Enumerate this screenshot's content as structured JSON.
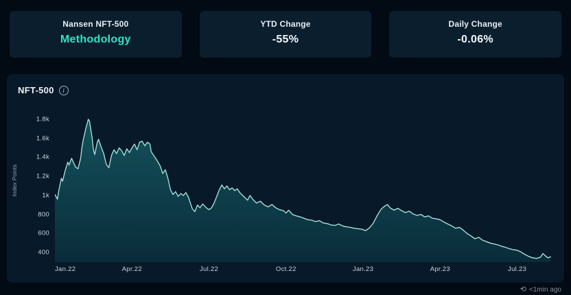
{
  "header": {
    "cards": [
      {
        "label": "Nansen NFT-500",
        "value": "Methodology"
      },
      {
        "label": "YTD Change",
        "value": "-55%"
      },
      {
        "label": "Daily Change",
        "value": "-0.06%"
      }
    ]
  },
  "panel": {
    "title": "NFT-500"
  },
  "icons": {
    "info_glyph": "i",
    "refresh_glyph": "⟲"
  },
  "footer": {
    "updated": "<1min ago"
  },
  "colors": {
    "accent_teal": "#2ce5c4",
    "card_bg": "#0b1e2e",
    "panel_bg": "#081929",
    "page_bg": "#020a13",
    "line": "#a5e3dc",
    "area_top": "#14525c",
    "area_bottom": "#0a2c3a"
  },
  "chart_data": {
    "type": "area",
    "title": "NFT-500",
    "xlabel": "",
    "ylabel": "Index Points",
    "x_unit": "months since Jan 2022",
    "xlim": [
      0,
      19.4
    ],
    "ylim": [
      300,
      1900
    ],
    "grid": false,
    "legend": "none",
    "x_ticks": [
      {
        "value": 0,
        "label": "Jan.22"
      },
      {
        "value": 3,
        "label": "Apr.22"
      },
      {
        "value": 6,
        "label": "Jul.22"
      },
      {
        "value": 9,
        "label": "Oct.22"
      },
      {
        "value": 12,
        "label": "Jan.23"
      },
      {
        "value": 15,
        "label": "Apr.23"
      },
      {
        "value": 18,
        "label": "Jul.23"
      }
    ],
    "y_ticks": [
      {
        "value": 400,
        "label": "400"
      },
      {
        "value": 600,
        "label": "600"
      },
      {
        "value": 800,
        "label": "800"
      },
      {
        "value": 1000,
        "label": "1k"
      },
      {
        "value": 1200,
        "label": "1.2k"
      },
      {
        "value": 1400,
        "label": "1.4k"
      },
      {
        "value": 1600,
        "label": "1.6k"
      },
      {
        "value": 1800,
        "label": "1.8k"
      }
    ],
    "points": [
      [
        0,
        1010
      ],
      [
        0.1,
        960
      ],
      [
        0.15,
        1050
      ],
      [
        0.25,
        1180
      ],
      [
        0.3,
        1150
      ],
      [
        0.4,
        1260
      ],
      [
        0.5,
        1350
      ],
      [
        0.55,
        1320
      ],
      [
        0.65,
        1390
      ],
      [
        0.7,
        1360
      ],
      [
        0.8,
        1300
      ],
      [
        0.9,
        1280
      ],
      [
        1.0,
        1390
      ],
      [
        1.05,
        1500
      ],
      [
        1.1,
        1580
      ],
      [
        1.2,
        1700
      ],
      [
        1.3,
        1800
      ],
      [
        1.35,
        1780
      ],
      [
        1.45,
        1600
      ],
      [
        1.5,
        1480
      ],
      [
        1.55,
        1430
      ],
      [
        1.65,
        1560
      ],
      [
        1.7,
        1590
      ],
      [
        1.8,
        1510
      ],
      [
        1.9,
        1440
      ],
      [
        2.0,
        1330
      ],
      [
        2.1,
        1290
      ],
      [
        2.2,
        1420
      ],
      [
        2.3,
        1480
      ],
      [
        2.4,
        1440
      ],
      [
        2.5,
        1500
      ],
      [
        2.6,
        1470
      ],
      [
        2.7,
        1420
      ],
      [
        2.8,
        1490
      ],
      [
        2.9,
        1450
      ],
      [
        3.0,
        1500
      ],
      [
        3.1,
        1540
      ],
      [
        3.2,
        1480
      ],
      [
        3.3,
        1560
      ],
      [
        3.4,
        1570
      ],
      [
        3.5,
        1520
      ],
      [
        3.6,
        1560
      ],
      [
        3.7,
        1540
      ],
      [
        3.75,
        1460
      ],
      [
        3.85,
        1420
      ],
      [
        3.95,
        1380
      ],
      [
        4.1,
        1310
      ],
      [
        4.2,
        1230
      ],
      [
        4.3,
        1270
      ],
      [
        4.4,
        1180
      ],
      [
        4.5,
        1060
      ],
      [
        4.6,
        1010
      ],
      [
        4.7,
        1040
      ],
      [
        4.8,
        990
      ],
      [
        4.9,
        1020
      ],
      [
        5.0,
        1000
      ],
      [
        5.1,
        1030
      ],
      [
        5.2,
        980
      ],
      [
        5.35,
        860
      ],
      [
        5.45,
        830
      ],
      [
        5.55,
        900
      ],
      [
        5.65,
        870
      ],
      [
        5.75,
        910
      ],
      [
        5.9,
        870
      ],
      [
        6.0,
        850
      ],
      [
        6.1,
        870
      ],
      [
        6.2,
        920
      ],
      [
        6.3,
        990
      ],
      [
        6.4,
        1060
      ],
      [
        6.5,
        1110
      ],
      [
        6.6,
        1070
      ],
      [
        6.7,
        1100
      ],
      [
        6.8,
        1060
      ],
      [
        6.9,
        1080
      ],
      [
        7.0,
        1050
      ],
      [
        7.1,
        1070
      ],
      [
        7.2,
        1030
      ],
      [
        7.35,
        990
      ],
      [
        7.5,
        950
      ],
      [
        7.6,
        1000
      ],
      [
        7.7,
        960
      ],
      [
        7.85,
        920
      ],
      [
        8.0,
        940
      ],
      [
        8.15,
        900
      ],
      [
        8.3,
        880
      ],
      [
        8.45,
        905
      ],
      [
        8.6,
        870
      ],
      [
        8.75,
        850
      ],
      [
        8.9,
        840
      ],
      [
        9.0,
        815
      ],
      [
        9.1,
        845
      ],
      [
        9.25,
        800
      ],
      [
        9.4,
        785
      ],
      [
        9.55,
        775
      ],
      [
        9.7,
        760
      ],
      [
        9.85,
        745
      ],
      [
        10.0,
        740
      ],
      [
        10.15,
        725
      ],
      [
        10.3,
        735
      ],
      [
        10.45,
        710
      ],
      [
        10.6,
        705
      ],
      [
        10.75,
        690
      ],
      [
        10.9,
        685
      ],
      [
        11.05,
        700
      ],
      [
        11.2,
        680
      ],
      [
        11.35,
        670
      ],
      [
        11.5,
        665
      ],
      [
        11.65,
        655
      ],
      [
        11.8,
        650
      ],
      [
        11.95,
        645
      ],
      [
        12.1,
        630
      ],
      [
        12.25,
        660
      ],
      [
        12.4,
        710
      ],
      [
        12.55,
        790
      ],
      [
        12.7,
        855
      ],
      [
        12.85,
        890
      ],
      [
        12.95,
        905
      ],
      [
        13.05,
        870
      ],
      [
        13.2,
        845
      ],
      [
        13.35,
        865
      ],
      [
        13.5,
        840
      ],
      [
        13.65,
        820
      ],
      [
        13.8,
        835
      ],
      [
        13.95,
        805
      ],
      [
        14.1,
        790
      ],
      [
        14.25,
        800
      ],
      [
        14.4,
        775
      ],
      [
        14.55,
        785
      ],
      [
        14.7,
        760
      ],
      [
        14.85,
        755
      ],
      [
        15.0,
        745
      ],
      [
        15.15,
        720
      ],
      [
        15.3,
        700
      ],
      [
        15.45,
        680
      ],
      [
        15.6,
        655
      ],
      [
        15.75,
        665
      ],
      [
        15.9,
        635
      ],
      [
        16.05,
        600
      ],
      [
        16.2,
        575
      ],
      [
        16.35,
        545
      ],
      [
        16.5,
        560
      ],
      [
        16.65,
        530
      ],
      [
        16.8,
        515
      ],
      [
        16.95,
        500
      ],
      [
        17.1,
        490
      ],
      [
        17.25,
        480
      ],
      [
        17.4,
        465
      ],
      [
        17.55,
        455
      ],
      [
        17.7,
        440
      ],
      [
        17.85,
        430
      ],
      [
        18.0,
        425
      ],
      [
        18.15,
        405
      ],
      [
        18.3,
        380
      ],
      [
        18.45,
        360
      ],
      [
        18.6,
        345
      ],
      [
        18.75,
        338
      ],
      [
        18.9,
        350
      ],
      [
        19.0,
        390
      ],
      [
        19.1,
        365
      ],
      [
        19.2,
        345
      ],
      [
        19.3,
        355
      ]
    ]
  }
}
